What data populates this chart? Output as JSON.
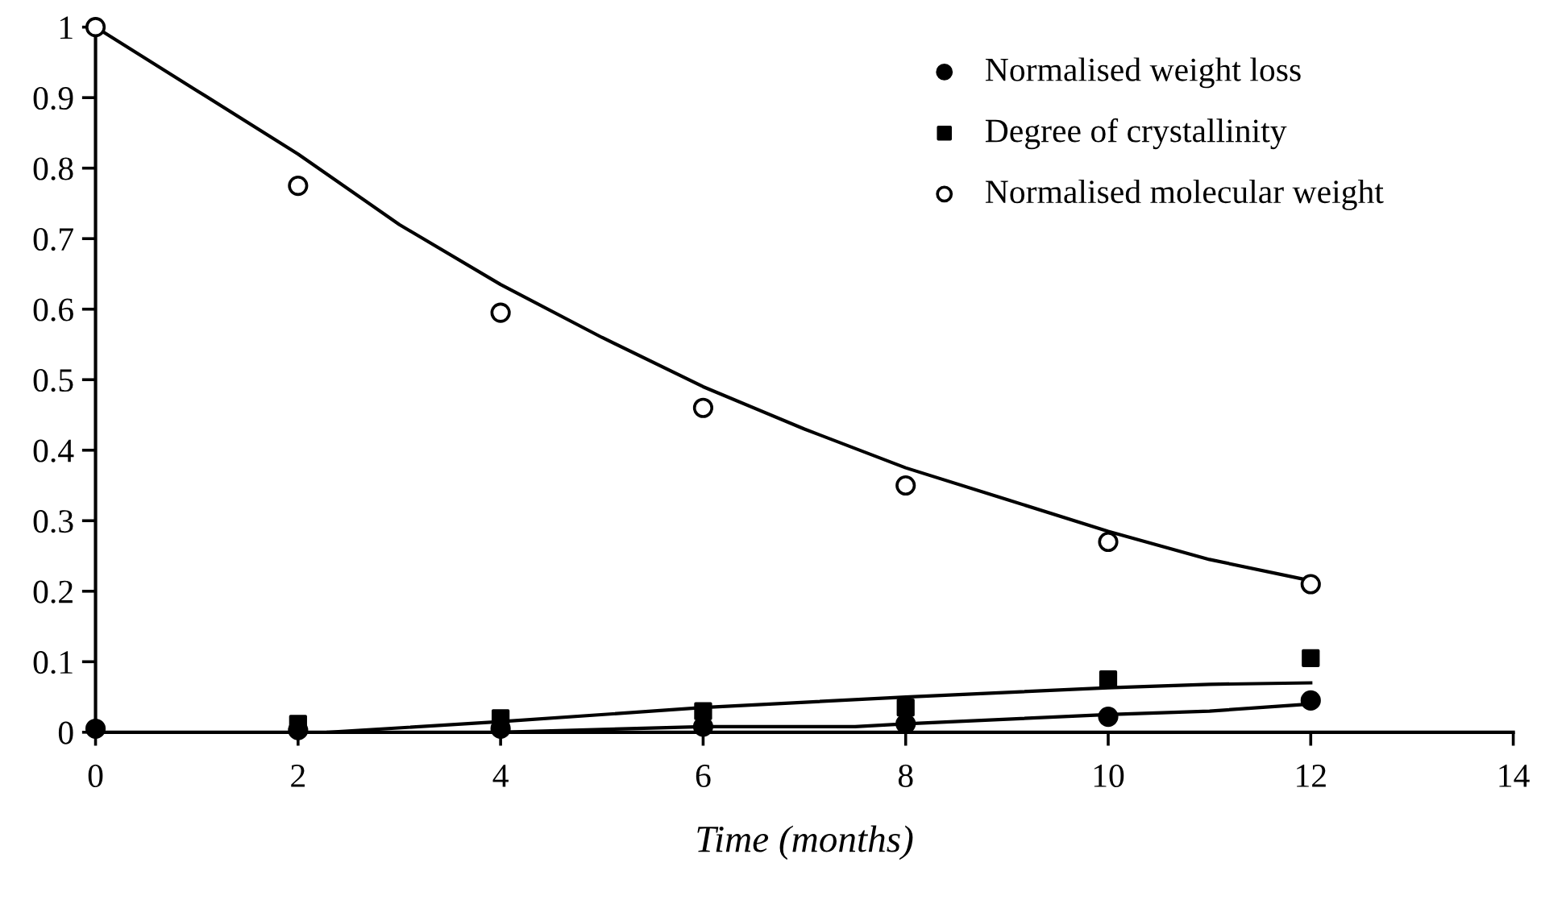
{
  "chart_data": {
    "type": "scatter",
    "xlabel": "Time (months)",
    "xlim": [
      0,
      14
    ],
    "xticks": [
      0,
      2,
      4,
      6,
      8,
      10,
      12,
      14
    ],
    "ylim": [
      0,
      1
    ],
    "yticks": [
      0,
      0.1,
      0.2,
      0.3,
      0.4,
      0.5,
      0.6,
      0.7,
      0.8,
      0.9,
      1
    ],
    "legend": "top right",
    "grid": false,
    "series": [
      {
        "name": "Normalised weight loss",
        "color": "#000000",
        "marker": "circle",
        "x": [
          0,
          2,
          4,
          6,
          8,
          10,
          12
        ],
        "values": [
          0.005,
          0.003,
          0.005,
          0.008,
          0.012,
          0.022,
          0.045
        ]
      },
      {
        "name": "Degree of crystallinity",
        "color": "#000000",
        "marker": "square",
        "x": [
          2,
          4,
          6,
          8,
          10,
          12
        ],
        "values": [
          0.012,
          0.02,
          0.03,
          0.035,
          0.075,
          0.105
        ]
      },
      {
        "name": "Normalised molecular weight",
        "color": "#ffffff",
        "marker": "circle",
        "x": [
          0,
          2,
          4,
          6,
          8,
          10,
          12
        ],
        "values": [
          1.0,
          0.775,
          0.595,
          0.46,
          0.35,
          0.27,
          0.21
        ]
      },
      {
        "type": "line",
        "color": "#000000",
        "line_style": "solid",
        "x": [
          4,
          6,
          7.5,
          8,
          10,
          11,
          12
        ],
        "values": [
          0,
          0.008,
          0.008,
          0.012,
          0.025,
          0.03,
          0.04
        ]
      },
      {
        "type": "line",
        "color": "#000000",
        "line_style": "solid",
        "x": [
          2.3,
          4,
          6,
          8,
          10,
          11,
          12
        ],
        "values": [
          0,
          0.015,
          0.035,
          0.05,
          0.063,
          0.068,
          0.07
        ]
      },
      {
        "type": "line",
        "color": "#000000",
        "line_style": "solid",
        "x": [
          0,
          1,
          2,
          3,
          4,
          5,
          6,
          7,
          8,
          9,
          10,
          11,
          12
        ],
        "values": [
          1.0,
          0.91,
          0.82,
          0.72,
          0.635,
          0.56,
          0.49,
          0.43,
          0.375,
          0.33,
          0.285,
          0.245,
          0.215
        ]
      }
    ]
  }
}
